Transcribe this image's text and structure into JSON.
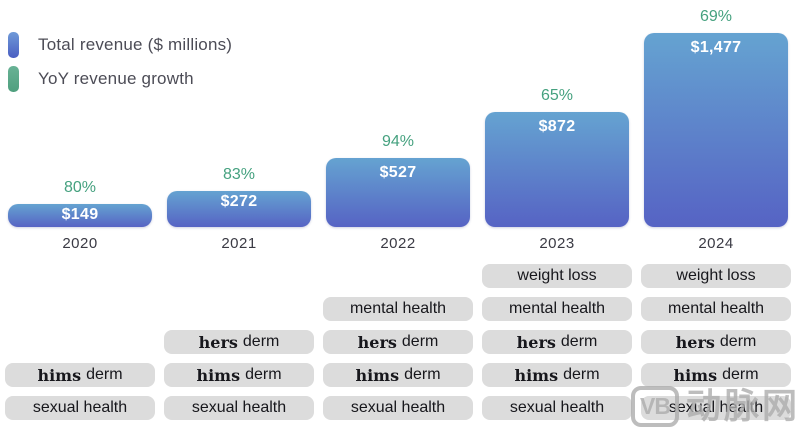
{
  "legend": {
    "items": [
      {
        "label": "Total revenue ($ millions)",
        "color": "#4e6fc6"
      },
      {
        "label": "YoY revenue growth",
        "color": "#55a585"
      }
    ]
  },
  "chart_data": {
    "type": "bar",
    "title": "",
    "categories": [
      "2020",
      "2021",
      "2022",
      "2023",
      "2024"
    ],
    "series": [
      {
        "name": "Total revenue ($ millions)",
        "unit": "$ millions",
        "values": [
          149,
          272,
          527,
          872,
          1477
        ],
        "labels": [
          "$149",
          "$272",
          "$527",
          "$872",
          "$1,477"
        ]
      },
      {
        "name": "YoY revenue growth",
        "unit": "%",
        "values": [
          80,
          83,
          94,
          65,
          69
        ],
        "labels": [
          "80%",
          "83%",
          "94%",
          "69%"
        ],
        "labels_full": [
          "80%",
          "83%",
          "94%",
          "65%",
          "69%"
        ]
      }
    ],
    "legend_position": "top-left",
    "grid": false,
    "bar_color_top": "#65a3d1",
    "bar_color_bottom": "#5663c4",
    "growth_label_color": "#45a17f",
    "offerings_by_year": [
      [
        {
          "brand": "hims",
          "text": "derm"
        },
        {
          "brand": "",
          "text": "sexual health"
        }
      ],
      [
        {
          "brand": "hers",
          "text": "derm"
        },
        {
          "brand": "hims",
          "text": "derm"
        },
        {
          "brand": "",
          "text": "sexual health"
        }
      ],
      [
        {
          "brand": "",
          "text": "mental health"
        },
        {
          "brand": "hers",
          "text": "derm"
        },
        {
          "brand": "hims",
          "text": "derm"
        },
        {
          "brand": "",
          "text": "sexual health"
        }
      ],
      [
        {
          "brand": "",
          "text": "weight loss"
        },
        {
          "brand": "",
          "text": "mental health"
        },
        {
          "brand": "hers",
          "text": "derm"
        },
        {
          "brand": "hims",
          "text": "derm"
        },
        {
          "brand": "",
          "text": "sexual health"
        }
      ],
      [
        {
          "brand": "",
          "text": "weight loss"
        },
        {
          "brand": "",
          "text": "mental health"
        },
        {
          "brand": "hers",
          "text": "derm"
        },
        {
          "brand": "hims",
          "text": "derm"
        },
        {
          "brand": "",
          "text": "sexual health"
        }
      ]
    ]
  },
  "watermark": {
    "logo": "VB",
    "text": "动脉网"
  }
}
